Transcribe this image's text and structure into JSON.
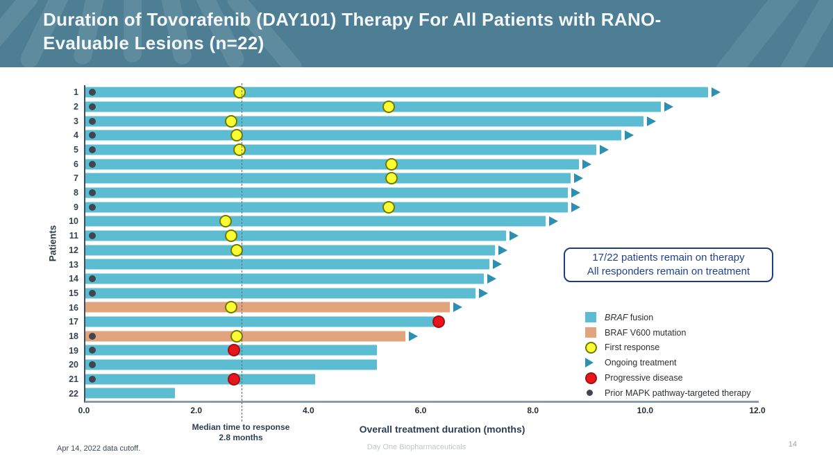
{
  "slide": {
    "title_line1": "Duration of Tovorafenib (DAY101) Therapy For All Patients with RANO-",
    "title_line2": "Evaluable Lesions (n=22)",
    "footer_left": "Apr 14, 2022 data cutoff.",
    "footer_center": "Day One Biopharmaceuticals",
    "page_number": "14"
  },
  "annotation_box": {
    "line1": "17/22 patients remain on therapy",
    "line2": "All responders remain on treatment"
  },
  "legend": {
    "items": [
      {
        "icon": "square",
        "color": "#5CBDD2",
        "border": "",
        "label_italic": "BRAF",
        "label": " fusion"
      },
      {
        "icon": "square",
        "color": "#E2A47D",
        "border": "",
        "label_italic": "",
        "label": "BRAF V600 mutation"
      },
      {
        "icon": "circle",
        "color": "#FCFC33",
        "border": "#6F7A00",
        "label_italic": "",
        "label": "First response"
      },
      {
        "icon": "triangle",
        "color": "#2E90B0",
        "border": "",
        "label_italic": "",
        "label": "Ongoing treatment"
      },
      {
        "icon": "circle",
        "color": "#E8151B",
        "border": "#A31013",
        "label_italic": "",
        "label": "Progressive disease"
      },
      {
        "icon": "dot",
        "color": "#3E474F",
        "border": "",
        "label_italic": "",
        "label": "Prior MAPK pathway-targeted therapy"
      }
    ]
  },
  "chart_data": {
    "type": "bar",
    "orientation": "horizontal",
    "title": "Duration of Tovorafenib (DAY101) Therapy For All Patients with RANO-Evaluable Lesions (n=22)",
    "xlabel": "Overall treatment duration (months)",
    "ylabel": "Patients",
    "xlim": [
      0,
      12
    ],
    "xtick_labels": [
      "0.0",
      "2.0",
      "4.0",
      "6.0",
      "8.0",
      "10.0",
      "12.0"
    ],
    "grid": false,
    "legend_position": "lower right",
    "median_line": {
      "x": 2.8,
      "label_line1": "Median time to response",
      "label_line2": "2.8 months"
    },
    "colors": {
      "fusion": "#5CBDD2",
      "v600": "#E2A47D",
      "arrow": "#2E90B0",
      "first_response": "#FCFC33",
      "progressive": "#E8151B",
      "prior_mapk": "#3E474F",
      "median_line": "#5B6B7A"
    },
    "patients": [
      {
        "id": 1,
        "duration": 11.1,
        "mutation": "fusion",
        "prior_mapk": true,
        "first_response": 2.75,
        "ongoing": true,
        "progressive": null
      },
      {
        "id": 2,
        "duration": 10.25,
        "mutation": "fusion",
        "prior_mapk": true,
        "first_response": 5.4,
        "ongoing": true,
        "progressive": null
      },
      {
        "id": 3,
        "duration": 9.95,
        "mutation": "fusion",
        "prior_mapk": true,
        "first_response": 2.6,
        "ongoing": true,
        "progressive": null
      },
      {
        "id": 4,
        "duration": 9.55,
        "mutation": "fusion",
        "prior_mapk": true,
        "first_response": 2.7,
        "ongoing": true,
        "progressive": null
      },
      {
        "id": 5,
        "duration": 9.1,
        "mutation": "fusion",
        "prior_mapk": true,
        "first_response": 2.75,
        "ongoing": true,
        "progressive": null
      },
      {
        "id": 6,
        "duration": 8.8,
        "mutation": "fusion",
        "prior_mapk": true,
        "first_response": 5.45,
        "ongoing": true,
        "progressive": null
      },
      {
        "id": 7,
        "duration": 8.65,
        "mutation": "fusion",
        "prior_mapk": false,
        "first_response": 5.45,
        "ongoing": true,
        "progressive": null
      },
      {
        "id": 8,
        "duration": 8.6,
        "mutation": "fusion",
        "prior_mapk": true,
        "first_response": null,
        "ongoing": true,
        "progressive": null
      },
      {
        "id": 9,
        "duration": 8.6,
        "mutation": "fusion",
        "prior_mapk": true,
        "first_response": 5.4,
        "ongoing": true,
        "progressive": null
      },
      {
        "id": 10,
        "duration": 8.2,
        "mutation": "fusion",
        "prior_mapk": false,
        "first_response": 2.5,
        "ongoing": true,
        "progressive": null
      },
      {
        "id": 11,
        "duration": 7.5,
        "mutation": "fusion",
        "prior_mapk": true,
        "first_response": 2.6,
        "ongoing": true,
        "progressive": null
      },
      {
        "id": 12,
        "duration": 7.3,
        "mutation": "fusion",
        "prior_mapk": false,
        "first_response": 2.7,
        "ongoing": true,
        "progressive": null
      },
      {
        "id": 13,
        "duration": 7.2,
        "mutation": "fusion",
        "prior_mapk": false,
        "first_response": null,
        "ongoing": true,
        "progressive": null
      },
      {
        "id": 14,
        "duration": 7.1,
        "mutation": "fusion",
        "prior_mapk": true,
        "first_response": null,
        "ongoing": true,
        "progressive": null
      },
      {
        "id": 15,
        "duration": 6.95,
        "mutation": "fusion",
        "prior_mapk": true,
        "first_response": null,
        "ongoing": true,
        "progressive": null
      },
      {
        "id": 16,
        "duration": 6.5,
        "mutation": "v600",
        "prior_mapk": false,
        "first_response": 2.6,
        "ongoing": true,
        "progressive": null
      },
      {
        "id": 17,
        "duration": 6.25,
        "mutation": "fusion",
        "prior_mapk": false,
        "first_response": null,
        "ongoing": false,
        "progressive": 6.3
      },
      {
        "id": 18,
        "duration": 5.7,
        "mutation": "v600",
        "prior_mapk": true,
        "first_response": 2.7,
        "ongoing": true,
        "progressive": null
      },
      {
        "id": 19,
        "duration": 5.2,
        "mutation": "fusion",
        "prior_mapk": true,
        "first_response": null,
        "ongoing": false,
        "progressive": 2.65
      },
      {
        "id": 20,
        "duration": 5.2,
        "mutation": "fusion",
        "prior_mapk": true,
        "first_response": null,
        "ongoing": false,
        "progressive": null
      },
      {
        "id": 21,
        "duration": 4.1,
        "mutation": "fusion",
        "prior_mapk": true,
        "first_response": null,
        "ongoing": false,
        "progressive": 2.65
      },
      {
        "id": 22,
        "duration": 1.6,
        "mutation": "fusion",
        "prior_mapk": false,
        "first_response": null,
        "ongoing": false,
        "progressive": null
      }
    ]
  }
}
